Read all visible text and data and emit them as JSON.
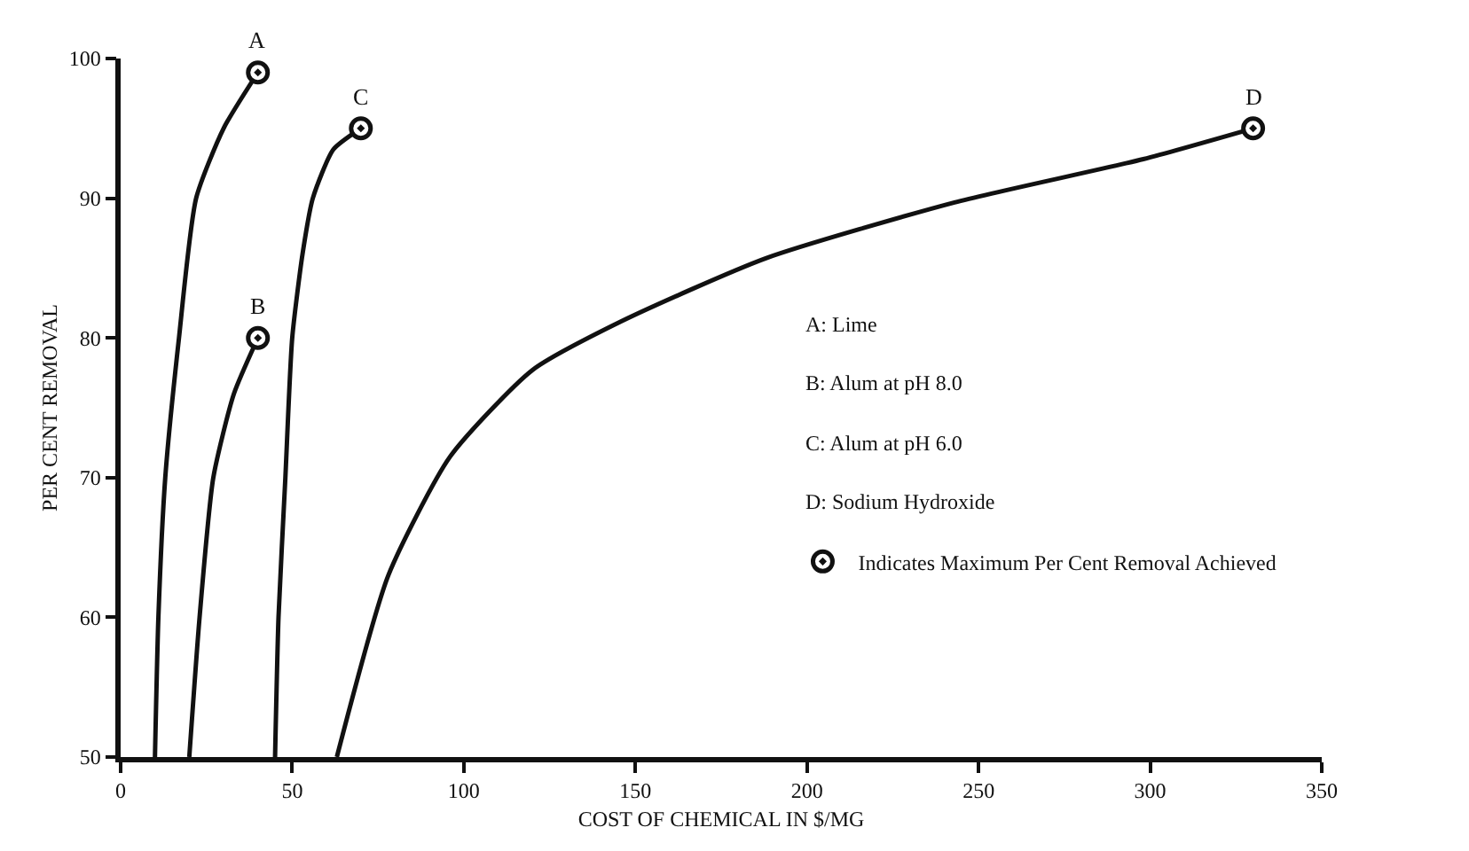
{
  "chart_data": {
    "type": "line",
    "xlabel": "COST OF CHEMICAL IN $/MG",
    "ylabel": "PER CENT REMOVAL",
    "xlim": [
      0,
      350
    ],
    "xticks": [
      0,
      50,
      100,
      150,
      200,
      250,
      300,
      350
    ],
    "ylim": [
      50,
      100
    ],
    "yticks": [
      50,
      60,
      70,
      80,
      90,
      100
    ],
    "legend": "right",
    "line_style": "solid",
    "series": [
      {
        "color": "#111111",
        "marker": "none",
        "x": [
          10,
          11,
          13,
          17,
          22,
          30,
          40
        ],
        "values": [
          50,
          60,
          70,
          80,
          90,
          95,
          99
        ]
      },
      {
        "color": "#111111",
        "marker": "none",
        "x": [
          20,
          23,
          27,
          33,
          40
        ],
        "values": [
          50,
          60,
          70,
          76,
          80
        ]
      },
      {
        "color": "#111111",
        "marker": "none",
        "x": [
          45,
          46,
          48,
          50,
          53,
          56,
          62,
          70
        ],
        "values": [
          50,
          60,
          70,
          80,
          86,
          90,
          93.5,
          95
        ]
      },
      {
        "color": "#111111",
        "marker": "none",
        "x": [
          63,
          78,
          96,
          120,
          146,
          188,
          243,
          298,
          330
        ],
        "values": [
          50,
          63,
          71.5,
          77.7,
          81.2,
          85.7,
          89.7,
          92.8,
          95
        ]
      },
      {
        "type": "scatter",
        "name": "Indicates Maximum Per Cent Removal Achieved",
        "color": "#111111",
        "marker": "circle",
        "x": [
          40,
          40,
          70,
          330
        ],
        "values": [
          99,
          80,
          95,
          95
        ]
      }
    ],
    "annotations": [
      {
        "text": "A",
        "x": 40,
        "y": 99
      },
      {
        "text": "B",
        "x": 40,
        "y": 80
      },
      {
        "text": "C",
        "x": 70,
        "y": 95
      },
      {
        "text": "D",
        "x": 330,
        "y": 95
      },
      "A: Lime",
      "B: Alum at pH 8.0",
      "C: Alum at pH 6.0",
      "D: Sodium Hydroxide"
    ]
  }
}
